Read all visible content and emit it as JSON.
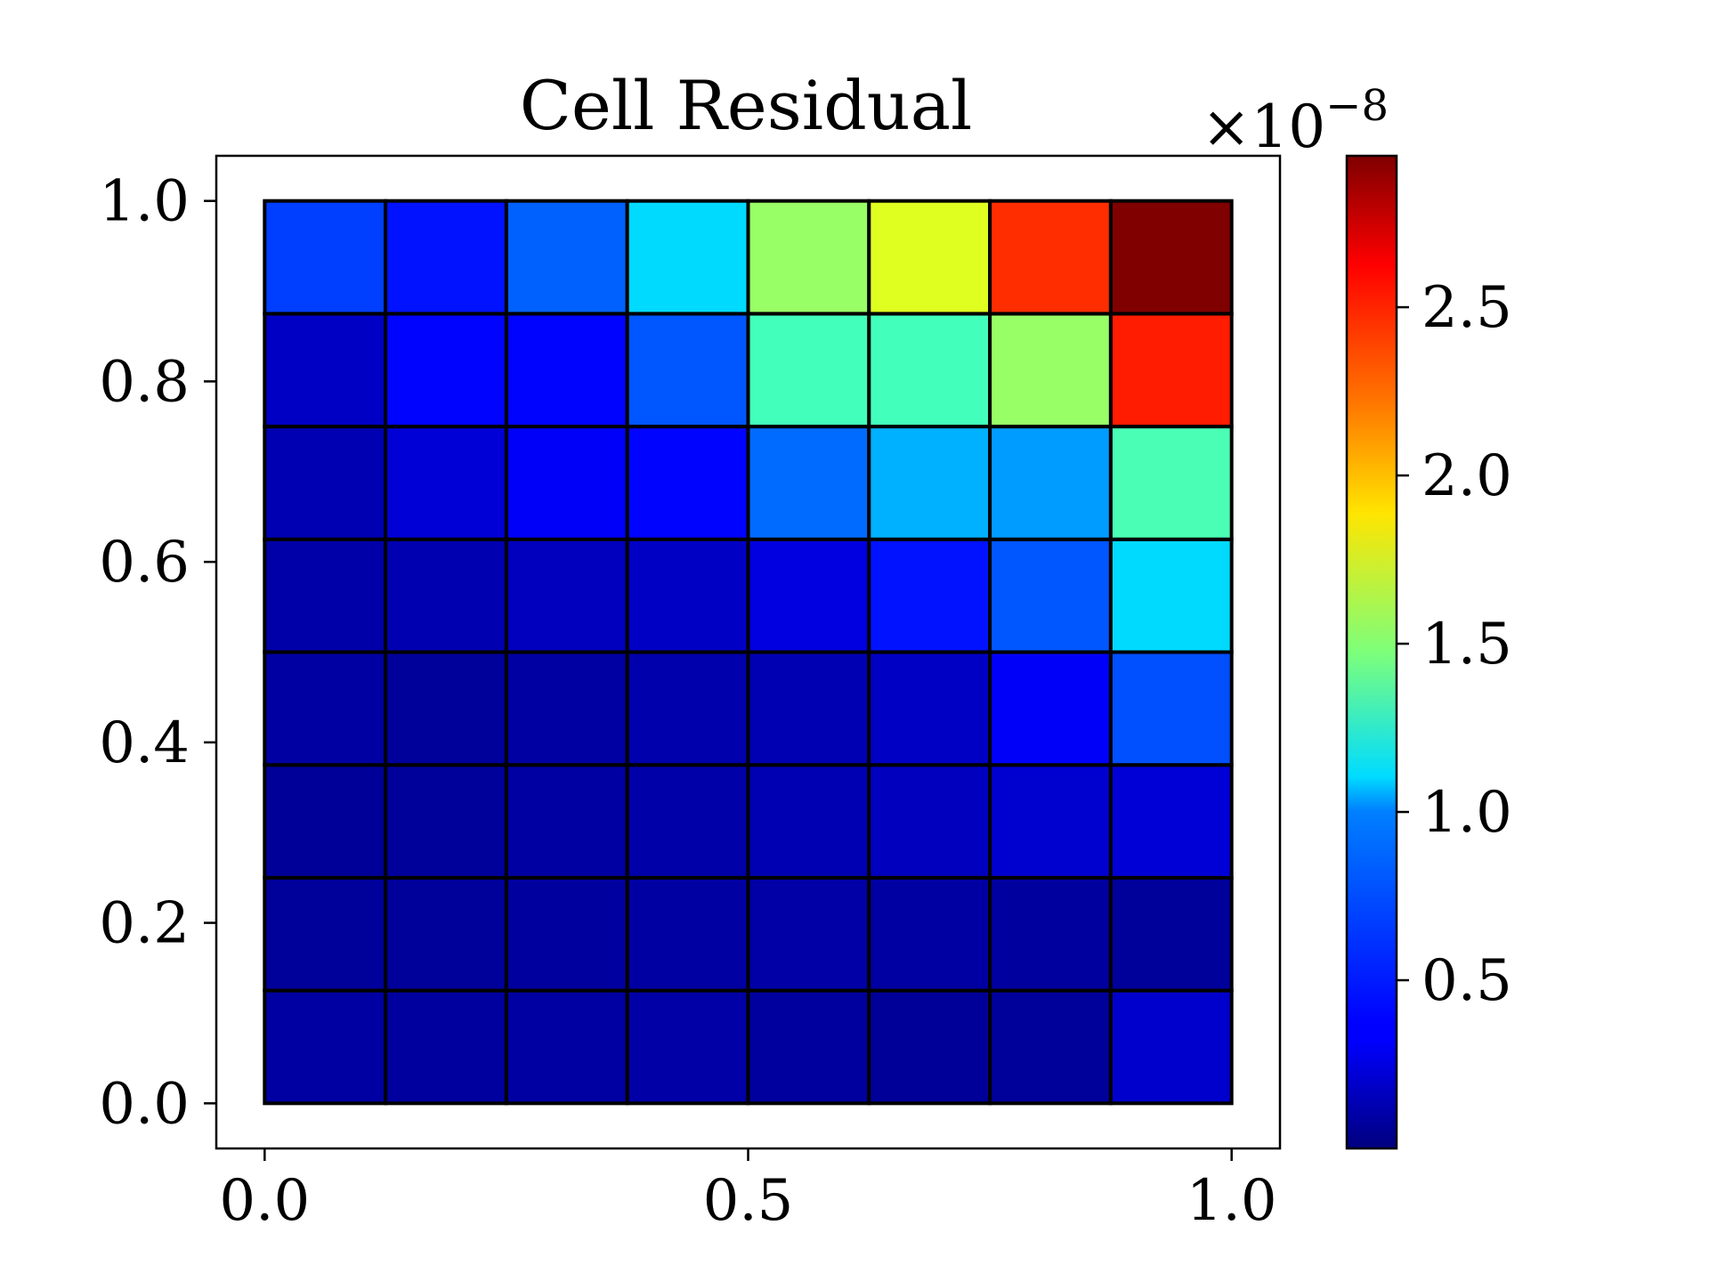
{
  "chart_data": {
    "type": "heatmap",
    "title": "Cell Residual",
    "xlabel": "",
    "ylabel": "",
    "xlim": [
      -0.05,
      1.05
    ],
    "ylim": [
      -0.05,
      1.05
    ],
    "x_ticks": [
      {
        "value": 0.0,
        "label": "0.0"
      },
      {
        "value": 0.5,
        "label": "0.5"
      },
      {
        "value": 1.0,
        "label": "1.0"
      }
    ],
    "y_ticks": [
      {
        "value": 0.0,
        "label": "0.0"
      },
      {
        "value": 0.2,
        "label": "0.2"
      },
      {
        "value": 0.4,
        "label": "0.4"
      },
      {
        "value": 0.6,
        "label": "0.6"
      },
      {
        "value": 0.8,
        "label": "0.8"
      },
      {
        "value": 1.0,
        "label": "1.0"
      }
    ],
    "grid_n": 8,
    "colormap": "jet",
    "values_note_rows": "rows listed from bottom (y=0) to top (y=1); each row from left (x=0) to right (x=1)",
    "values": [
      [
        0.1,
        0.09,
        0.1,
        0.11,
        0.09,
        0.07,
        0.08,
        0.22
      ],
      [
        0.08,
        0.08,
        0.09,
        0.1,
        0.11,
        0.1,
        0.09,
        0.08
      ],
      [
        0.07,
        0.08,
        0.1,
        0.12,
        0.15,
        0.18,
        0.23,
        0.25
      ],
      [
        0.1,
        0.08,
        0.1,
        0.13,
        0.15,
        0.2,
        0.35,
        0.6
      ],
      [
        0.12,
        0.14,
        0.18,
        0.2,
        0.28,
        0.42,
        0.62,
        1.0
      ],
      [
        0.15,
        0.25,
        0.35,
        0.38,
        0.68,
        0.88,
        0.82,
        1.32
      ],
      [
        0.2,
        0.38,
        0.38,
        0.62,
        1.3,
        1.3,
        1.55,
        2.5
      ],
      [
        0.55,
        0.42,
        0.65,
        1.0,
        1.55,
        1.75,
        2.45,
        2.95
      ]
    ],
    "colorbar": {
      "min": 0.0,
      "max": 2.95,
      "ticks": [
        {
          "value": 0.5,
          "label": "0.5"
        },
        {
          "value": 1.0,
          "label": "1.0"
        },
        {
          "value": 1.5,
          "label": "1.5"
        },
        {
          "value": 2.0,
          "label": "2.0"
        },
        {
          "value": 2.5,
          "label": "2.5"
        }
      ],
      "multiplier_base": "×10",
      "multiplier_exponent": "−8"
    },
    "cell_edge_color": "#000000"
  }
}
